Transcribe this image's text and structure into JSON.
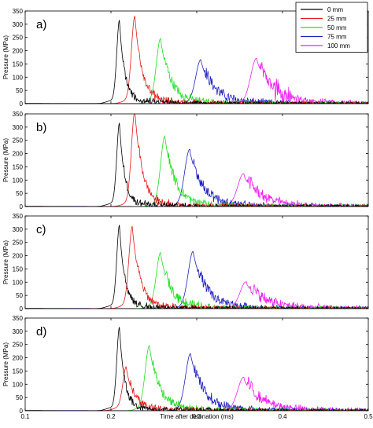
{
  "chart_data": {
    "type": "line",
    "xlabel": "Time after detonation (ms)",
    "xlim": [
      0.1,
      0.5
    ],
    "x_ticks": [
      "0.1",
      "0.2",
      "0.3",
      "0.4",
      "0.5"
    ],
    "legend": {
      "placement": "top-right",
      "entries": [
        {
          "name": "0 mm",
          "color": "#000000"
        },
        {
          "name": "25 mm",
          "color": "#e41a1c"
        },
        {
          "name": "50 mm",
          "color": "#22dd22"
        },
        {
          "name": "75 mm",
          "color": "#1f1fbf"
        },
        {
          "name": "100 mm",
          "color": "#ee22ee"
        }
      ]
    },
    "panels": [
      {
        "label": "a)",
        "ylabel": "Pressure (MPa)",
        "ylim": [
          0,
          350
        ],
        "y_ticks": [
          "0",
          "50",
          "100",
          "150",
          "200",
          "250",
          "300",
          "350"
        ],
        "series": [
          {
            "name": "0 mm",
            "peak_time": 0.21,
            "peak": 310
          },
          {
            "name": "25 mm",
            "peak_time": 0.228,
            "peak": 325
          },
          {
            "name": "50 mm",
            "peak_time": 0.258,
            "peak": 240
          },
          {
            "name": "75 mm",
            "peak_time": 0.305,
            "peak": 160
          },
          {
            "name": "100 mm",
            "peak_time": 0.37,
            "peak": 165
          }
        ]
      },
      {
        "label": "b)",
        "ylabel": "Pressure (MPa)",
        "ylim": [
          0,
          350
        ],
        "y_ticks": [
          "0",
          "50",
          "100",
          "150",
          "200",
          "250",
          "300",
          "350"
        ],
        "series": [
          {
            "name": "0 mm",
            "peak_time": 0.21,
            "peak": 310
          },
          {
            "name": "25 mm",
            "peak_time": 0.228,
            "peak": 355
          },
          {
            "name": "50 mm",
            "peak_time": 0.263,
            "peak": 260
          },
          {
            "name": "75 mm",
            "peak_time": 0.292,
            "peak": 210
          },
          {
            "name": "100 mm",
            "peak_time": 0.355,
            "peak": 118
          }
        ]
      },
      {
        "label": "c)",
        "ylabel": "Pressure (MPa)",
        "ylim": [
          0,
          350
        ],
        "y_ticks": [
          "0",
          "50",
          "100",
          "150",
          "200",
          "250",
          "300",
          "350"
        ],
        "series": [
          {
            "name": "0 mm",
            "peak_time": 0.21,
            "peak": 310
          },
          {
            "name": "25 mm",
            "peak_time": 0.225,
            "peak": 305
          },
          {
            "name": "50 mm",
            "peak_time": 0.258,
            "peak": 205
          },
          {
            "name": "75 mm",
            "peak_time": 0.296,
            "peak": 210
          },
          {
            "name": "100 mm",
            "peak_time": 0.358,
            "peak": 95
          }
        ]
      },
      {
        "label": "d)",
        "ylabel": "Pressure (MPa)",
        "ylim": [
          0,
          350
        ],
        "y_ticks": [
          "0",
          "50",
          "100",
          "150",
          "200",
          "250",
          "300",
          "350"
        ],
        "series": [
          {
            "name": "0 mm",
            "peak_time": 0.21,
            "peak": 310
          },
          {
            "name": "25 mm",
            "peak_time": 0.218,
            "peak": 160
          },
          {
            "name": "50 mm",
            "peak_time": 0.245,
            "peak": 240
          },
          {
            "name": "75 mm",
            "peak_time": 0.293,
            "peak": 210
          },
          {
            "name": "100 mm",
            "peak_time": 0.355,
            "peak": 120
          }
        ]
      }
    ]
  }
}
